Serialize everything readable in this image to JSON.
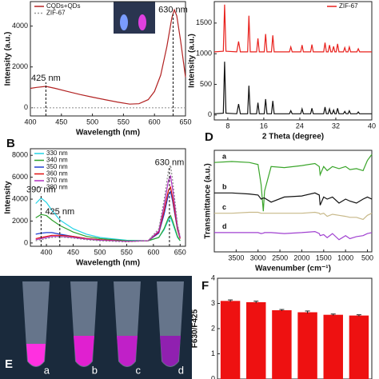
{
  "chart_data": [
    {
      "type": "line",
      "xlabel": "Wavelength (nm)",
      "ylabel": "Intensity (a.u.)",
      "x": [
        400,
        410,
        425,
        440,
        460,
        480,
        500,
        520,
        540,
        560,
        575,
        590,
        600,
        610,
        620,
        628,
        632,
        636,
        642,
        650
      ],
      "series": [
        {
          "name": "CQDs+QDs",
          "color": "#b22222",
          "values": [
            950,
            1000,
            1050,
            950,
            800,
            650,
            520,
            400,
            280,
            180,
            200,
            400,
            800,
            1600,
            3000,
            4400,
            4800,
            4500,
            3300,
            1500
          ]
        },
        {
          "name": "ZIF-67",
          "color": "#999999",
          "dash": true,
          "values": [
            0,
            0,
            0,
            0,
            0,
            0,
            0,
            0,
            0,
            0,
            0,
            0,
            0,
            0,
            0,
            0,
            0,
            0,
            0,
            0
          ]
        }
      ],
      "annotations": [
        {
          "label": "425 nm",
          "x": 425
        },
        {
          "label": "630 nm",
          "x": 630
        }
      ],
      "xlim": [
        400,
        650
      ],
      "xticks": [
        400,
        450,
        500,
        550,
        600,
        650
      ],
      "ylim": [
        -400,
        5200
      ],
      "yticks": [
        0,
        2000,
        4000
      ],
      "legend": "upper left"
    },
    {
      "type": "line",
      "xlabel": "2 Theta (degree)",
      "ylabel": "Intensity (a.u.)",
      "x": [
        5,
        7,
        7.3,
        7.6,
        10,
        10.4,
        10.8,
        12.4,
        12.7,
        13,
        14.4,
        14.7,
        15,
        16.1,
        16.4,
        16.7,
        17.7,
        18,
        18.3,
        21.7,
        22,
        22.3,
        24.2,
        24.5,
        24.8,
        26.4,
        26.7,
        27,
        29.3,
        29.6,
        29.9,
        30.3,
        30.6,
        30.9,
        31.2,
        31.5,
        31.8,
        32.1,
        32.4,
        32.7,
        33.7,
        34,
        34.3,
        34.7,
        35,
        35.3,
        36.7,
        37,
        37.3,
        40
      ],
      "series": [
        {
          "name": "ZIF-67",
          "color": "#e8201c",
          "values": [
            1030,
            1040,
            1800,
            1040,
            1030,
            1200,
            1030,
            1030,
            1620,
            1030,
            1030,
            1250,
            1030,
            1030,
            1320,
            1030,
            1030,
            1300,
            1030,
            1030,
            1110,
            1030,
            1030,
            1140,
            1030,
            1030,
            1150,
            1030,
            1030,
            1180,
            1030,
            1030,
            1140,
            1030,
            1030,
            1120,
            1030,
            1030,
            1160,
            1030,
            1030,
            1100,
            1030,
            1030,
            1110,
            1030,
            1030,
            1080,
            1030,
            1030
          ]
        },
        {
          "color": "#111111",
          "values": [
            20,
            30,
            870,
            30,
            20,
            180,
            20,
            20,
            480,
            20,
            20,
            200,
            20,
            20,
            260,
            20,
            20,
            230,
            20,
            20,
            70,
            20,
            20,
            100,
            20,
            20,
            110,
            20,
            20,
            130,
            20,
            20,
            100,
            20,
            20,
            80,
            20,
            20,
            110,
            20,
            20,
            60,
            20,
            20,
            70,
            20,
            20,
            50,
            20,
            20
          ]
        }
      ],
      "xlim": [
        5,
        40
      ],
      "xticks": [
        8,
        16,
        24,
        32,
        40
      ],
      "ylim": [
        -80,
        1850
      ],
      "yticks": [
        0,
        500,
        1000,
        1500
      ],
      "legend": "upper right"
    },
    {
      "type": "line",
      "panel_label": "B",
      "xlabel": "Wavelength (nm)",
      "ylabel": "Intensity",
      "x": [
        380,
        390,
        400,
        410,
        425,
        450,
        475,
        500,
        550,
        590,
        610,
        620,
        628,
        632,
        636,
        645,
        650
      ],
      "series": [
        {
          "name": "330 nm",
          "color": "#22d3e6",
          "values": [
            3600,
            4100,
            3700,
            3000,
            2100,
            1300,
            800,
            500,
            250,
            200,
            500,
            1200,
            2100,
            2300,
            1800,
            500,
            200
          ]
        },
        {
          "name": "340 nm",
          "color": "#2ca02c",
          "values": [
            2300,
            2600,
            2500,
            2100,
            1600,
            1000,
            600,
            400,
            200,
            200,
            500,
            1300,
            2300,
            2500,
            2000,
            600,
            200
          ]
        },
        {
          "name": "350 nm",
          "color": "#1f3fd0",
          "values": [
            800,
            900,
            950,
            950,
            800,
            600,
            400,
            300,
            150,
            200,
            900,
            2600,
            4400,
            4700,
            3800,
            1200,
            400
          ]
        },
        {
          "name": "360 nm",
          "color": "#e01010",
          "values": [
            400,
            500,
            600,
            700,
            700,
            600,
            400,
            300,
            150,
            200,
            1000,
            2900,
            4800,
            5100,
            4100,
            1300,
            400
          ]
        },
        {
          "name": "370 nm",
          "color": "#b030c0",
          "values": [
            300,
            400,
            500,
            600,
            600,
            500,
            350,
            250,
            150,
            200,
            1100,
            3400,
            5700,
            6100,
            4900,
            1500,
            500
          ]
        },
        {
          "name": "380 nm",
          "color": "#888888",
          "dash": true,
          "values": [
            200,
            300,
            400,
            500,
            550,
            450,
            300,
            200,
            100,
            200,
            1300,
            3900,
            6600,
            7100,
            5700,
            1700,
            600
          ]
        }
      ],
      "annotations": [
        {
          "label": "390 nm",
          "x": 390
        },
        {
          "label": "425 nm",
          "x": 425
        },
        {
          "label": "630 nm",
          "x": 630
        }
      ],
      "xlim": [
        370,
        660
      ],
      "xticks": [
        400,
        450,
        500,
        550,
        600,
        650
      ],
      "ylim": [
        -300,
        8600
      ],
      "yticks": [
        0,
        2000,
        4000,
        6000,
        8000
      ],
      "legend": "upper left"
    },
    {
      "type": "line",
      "panel_label": "D",
      "xlabel": "Wavenumber (cm⁻¹)",
      "ylabel": "Transmittance (a.u.)",
      "x": [
        4000,
        3600,
        3200,
        3000,
        2930,
        2880,
        2850,
        2700,
        2400,
        2000,
        1700,
        1600,
        1580,
        1500,
        1420,
        1300,
        1150,
        1000,
        900,
        750,
        600,
        500,
        400
      ],
      "series": [
        {
          "name": "a",
          "color": "#3aa52a",
          "values": [
            440,
            445,
            440,
            430,
            330,
            200,
            300,
            420,
            415,
            425,
            435,
            420,
            380,
            420,
            400,
            420,
            410,
            420,
            405,
            410,
            400,
            450,
            480
          ]
        },
        {
          "name": "b",
          "color": "#111111",
          "values": [
            290,
            290,
            285,
            280,
            260,
            265,
            265,
            245,
            270,
            275,
            290,
            280,
            230,
            270,
            260,
            270,
            240,
            260,
            250,
            240,
            260,
            270,
            260
          ]
        },
        {
          "name": "c",
          "color": "#c8b98a",
          "values": [
            190,
            190,
            195,
            195,
            190,
            190,
            190,
            190,
            190,
            190,
            195,
            190,
            185,
            190,
            175,
            185,
            180,
            175,
            170,
            170,
            160,
            180,
            190
          ]
        },
        {
          "name": "d",
          "color": "#a040d0",
          "values": [
            95,
            95,
            95,
            95,
            90,
            92,
            95,
            95,
            90,
            95,
            100,
            90,
            80,
            85,
            70,
            90,
            60,
            80,
            65,
            75,
            80,
            90,
            95
          ]
        }
      ],
      "xlim": [
        4000,
        400
      ],
      "xticks": [
        3500,
        3000,
        2500,
        2000,
        1500,
        1000,
        500
      ],
      "ylim": [
        0,
        500
      ],
      "legend": "inline"
    },
    {
      "type": "bar",
      "panel_label": "F",
      "ylabel": "F630/F425",
      "color": "#ee1111",
      "values": [
        3.1,
        3.05,
        2.73,
        2.65,
        2.55,
        2.52
      ],
      "errors": [
        0.04,
        0.04,
        0.03,
        0.05,
        0.03,
        0.03
      ],
      "ylim": [
        0,
        4
      ],
      "yticks": [
        0,
        1,
        2,
        3,
        4
      ]
    }
  ],
  "photo": {
    "panel_label": "E",
    "tube_labels": [
      "a",
      "b",
      "c",
      "d"
    ]
  }
}
